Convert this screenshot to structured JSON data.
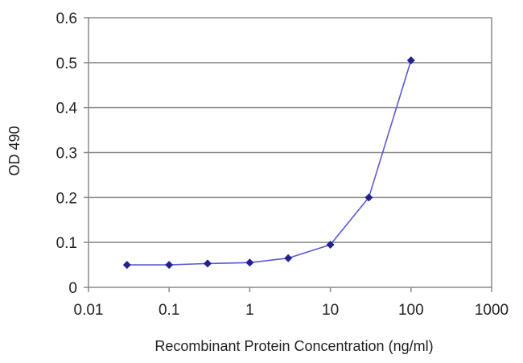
{
  "chart_data": {
    "type": "line",
    "xlabel": "Recombinant Protein Concentration (ng/ml)",
    "ylabel": "OD 490",
    "x_scale": "log",
    "xlim": [
      0.01,
      1000
    ],
    "ylim": [
      0,
      0.6
    ],
    "x_ticks": [
      "0.01",
      "0.1",
      "1",
      "10",
      "100",
      "1000"
    ],
    "y_ticks": [
      "0",
      "0.1",
      "0.2",
      "0.3",
      "0.4",
      "0.5",
      "0.6"
    ],
    "grid": "horizontal",
    "line_color": "#5a5ad2",
    "marker_color": "#22228c",
    "series": [
      {
        "x": [
          0.03,
          0.1,
          0.3,
          1,
          3,
          10,
          30,
          100
        ],
        "values": [
          0.05,
          0.05,
          0.053,
          0.055,
          0.065,
          0.095,
          0.2,
          0.505
        ]
      }
    ]
  }
}
